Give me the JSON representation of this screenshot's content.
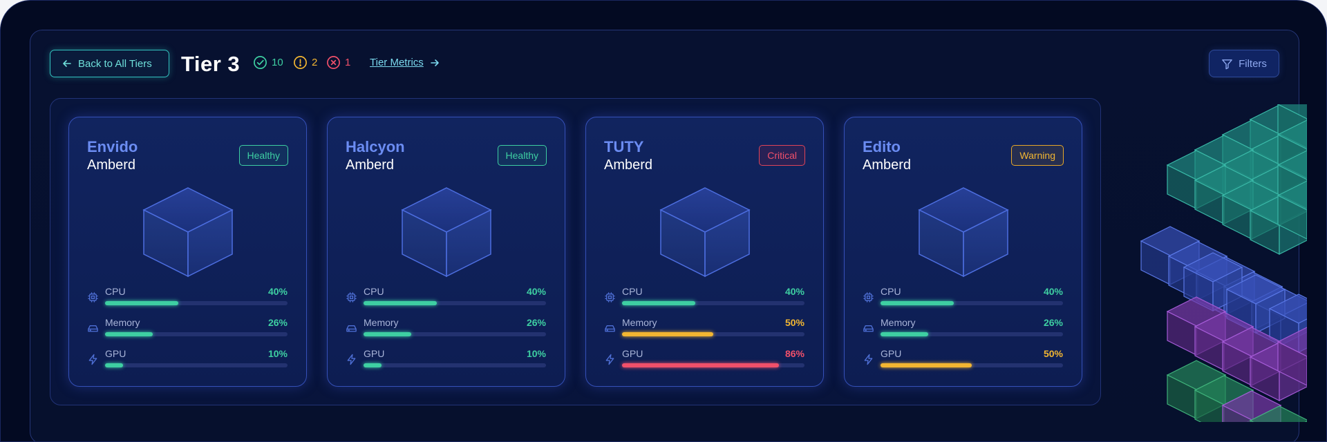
{
  "header": {
    "back_label": "Back to All Tiers",
    "title": "Tier 3",
    "stats": {
      "ok": "10",
      "warn": "2",
      "err": "1"
    },
    "metrics_link": "Tier Metrics",
    "filters_label": "Filters"
  },
  "colors": {
    "accent": "#6b8cf2",
    "healthy": "#3ecfa2",
    "warning": "#f2b632",
    "critical": "#f0506a"
  },
  "cards": [
    {
      "name": "Envido",
      "sub": "Amberd",
      "status": "Healthy",
      "status_kind": "healthy",
      "metrics": [
        {
          "label": "CPU",
          "value": "40%",
          "pct": 40,
          "kind": "ok"
        },
        {
          "label": "Memory",
          "value": "26%",
          "pct": 26,
          "kind": "ok"
        },
        {
          "label": "GPU",
          "value": "10%",
          "pct": 10,
          "kind": "ok"
        }
      ]
    },
    {
      "name": "Halcyon",
      "sub": "Amberd",
      "status": "Healthy",
      "status_kind": "healthy",
      "metrics": [
        {
          "label": "CPU",
          "value": "40%",
          "pct": 40,
          "kind": "ok"
        },
        {
          "label": "Memory",
          "value": "26%",
          "pct": 26,
          "kind": "ok"
        },
        {
          "label": "GPU",
          "value": "10%",
          "pct": 10,
          "kind": "ok"
        }
      ]
    },
    {
      "name": "TUTY",
      "sub": "Amberd",
      "status": "Critical",
      "status_kind": "critical",
      "metrics": [
        {
          "label": "CPU",
          "value": "40%",
          "pct": 40,
          "kind": "ok"
        },
        {
          "label": "Memory",
          "value": "50%",
          "pct": 50,
          "kind": "warn"
        },
        {
          "label": "GPU",
          "value": "86%",
          "pct": 86,
          "kind": "err"
        }
      ]
    },
    {
      "name": "Edito",
      "sub": "Amberd",
      "status": "Warning",
      "status_kind": "warning",
      "metrics": [
        {
          "label": "CPU",
          "value": "40%",
          "pct": 40,
          "kind": "ok"
        },
        {
          "label": "Memory",
          "value": "26%",
          "pct": 26,
          "kind": "ok"
        },
        {
          "label": "GPU",
          "value": "50%",
          "pct": 50,
          "kind": "warn"
        }
      ]
    }
  ]
}
